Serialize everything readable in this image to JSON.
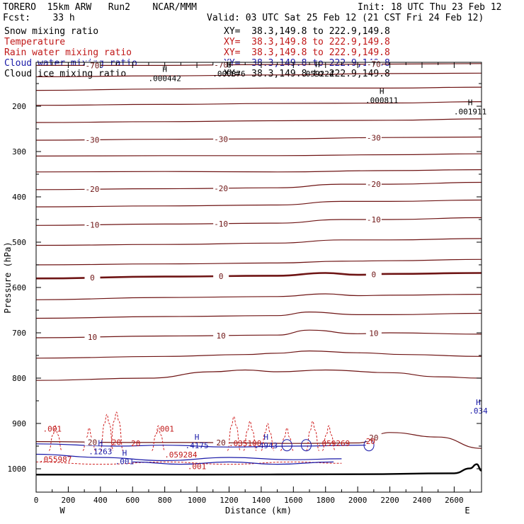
{
  "header": {
    "model": "TORERO  15km ARW   Run2    NCAR/MMM",
    "init": "Init: 18 UTC Thu 23 Feb 12",
    "fcst": "Fcst:    33 h",
    "valid": "Valid: 03 UTC Sat 25 Feb 12 (21 CST Fri 24 Feb 12)"
  },
  "fields": [
    {
      "name": "Snow mixing ratio",
      "xy": "XY=  38.3,149.8 to 222.9,149.8",
      "color": "#000000"
    },
    {
      "name": "Temperature",
      "xy": "XY=  38.3,149.8 to 222.9,149.8",
      "color": "#c01818"
    },
    {
      "name": "Rain water mixing ratio",
      "xy": "XY=  38.3,149.8 to 222.9,149.8",
      "color": "#c01818"
    },
    {
      "name": "Cloud water mixing ratio",
      "xy": "XY=  38.3,149.8 to 222.9,149.8",
      "color": "#1a1aa8"
    },
    {
      "name": "Cloud ice mixing ratio",
      "xy": "XY=  38.3,149.8 to 222.9,149.8",
      "color": "#000000"
    }
  ],
  "chart_data": {
    "type": "cross-section contour",
    "xlabel": "Distance (km)",
    "ylabel": "Pressure (hPa)",
    "xlim": [
      0,
      2770
    ],
    "ylim": [
      1030,
      100
    ],
    "x_ticks": [
      0,
      200,
      400,
      600,
      800,
      1000,
      1200,
      1400,
      1600,
      1800,
      2000,
      2200,
      2400,
      2600
    ],
    "y_ticks": [
      200,
      300,
      400,
      500,
      600,
      700,
      800,
      900,
      1000
    ],
    "endpoints": {
      "left": "W",
      "right": "E"
    },
    "temperature_contours": [
      {
        "label": "-70",
        "points": [
          [
            0,
            110
          ],
          [
            700,
            110
          ],
          [
            1500,
            108
          ],
          [
            2200,
            107
          ],
          [
            2770,
            106
          ]
        ]
      },
      {
        "label": "",
        "points": [
          [
            0,
            135
          ],
          [
            800,
            133
          ],
          [
            1500,
            131
          ],
          [
            2200,
            128
          ],
          [
            2770,
            127
          ]
        ]
      },
      {
        "label": "",
        "points": [
          [
            0,
            165
          ],
          [
            800,
            162
          ],
          [
            1500,
            160
          ],
          [
            2200,
            160
          ],
          [
            2770,
            158
          ]
        ]
      },
      {
        "label": "",
        "points": [
          [
            0,
            198
          ],
          [
            800,
            196
          ],
          [
            1500,
            194
          ],
          [
            2200,
            193
          ],
          [
            2770,
            190
          ]
        ]
      },
      {
        "label": "",
        "points": [
          [
            0,
            236
          ],
          [
            800,
            234
          ],
          [
            1500,
            232
          ],
          [
            2200,
            231
          ],
          [
            2770,
            228
          ]
        ]
      },
      {
        "label": "-30",
        "points": [
          [
            0,
            275
          ],
          [
            800,
            273
          ],
          [
            1500,
            272
          ],
          [
            2200,
            269
          ],
          [
            2770,
            268
          ]
        ]
      },
      {
        "label": "",
        "points": [
          [
            0,
            310
          ],
          [
            800,
            309
          ],
          [
            1500,
            309
          ],
          [
            2200,
            307
          ],
          [
            2770,
            305
          ]
        ]
      },
      {
        "label": "",
        "points": [
          [
            0,
            345
          ],
          [
            800,
            344
          ],
          [
            1500,
            345
          ],
          [
            2200,
            342
          ],
          [
            2770,
            340
          ]
        ]
      },
      {
        "label": "-20",
        "points": [
          [
            0,
            384
          ],
          [
            800,
            382
          ],
          [
            1500,
            380
          ],
          [
            1900,
            372
          ],
          [
            2200,
            372
          ],
          [
            2770,
            368
          ]
        ]
      },
      {
        "label": "",
        "points": [
          [
            0,
            422
          ],
          [
            800,
            420
          ],
          [
            1500,
            418
          ],
          [
            1900,
            410
          ],
          [
            2200,
            410
          ],
          [
            2770,
            407
          ]
        ]
      },
      {
        "label": "-10",
        "points": [
          [
            0,
            463
          ],
          [
            800,
            460
          ],
          [
            1500,
            458
          ],
          [
            1900,
            450
          ],
          [
            2200,
            450
          ],
          [
            2770,
            446
          ]
        ]
      },
      {
        "label": "",
        "points": [
          [
            0,
            507
          ],
          [
            800,
            505
          ],
          [
            1500,
            502
          ],
          [
            1900,
            495
          ],
          [
            2200,
            495
          ],
          [
            2770,
            492
          ]
        ]
      },
      {
        "label": "",
        "points": [
          [
            0,
            550
          ],
          [
            800,
            548
          ],
          [
            1500,
            546
          ],
          [
            1900,
            542
          ],
          [
            2200,
            541
          ],
          [
            2770,
            538
          ]
        ]
      },
      {
        "label": "0",
        "points": [
          [
            0,
            580
          ],
          [
            800,
            576
          ],
          [
            1500,
            574
          ],
          [
            1800,
            568
          ],
          [
            2000,
            572
          ],
          [
            2200,
            570
          ],
          [
            2770,
            568
          ]
        ]
      },
      {
        "label": "",
        "points": [
          [
            0,
            627
          ],
          [
            800,
            622
          ],
          [
            1500,
            620
          ],
          [
            1800,
            614
          ],
          [
            2000,
            618
          ],
          [
            2200,
            617
          ],
          [
            2770,
            615
          ]
        ]
      },
      {
        "label": "",
        "points": [
          [
            0,
            668
          ],
          [
            800,
            664
          ],
          [
            1500,
            662
          ],
          [
            1700,
            654
          ],
          [
            2000,
            660
          ],
          [
            2200,
            660
          ],
          [
            2770,
            657
          ]
        ]
      },
      {
        "label": "10",
        "points": [
          [
            0,
            711
          ],
          [
            800,
            707
          ],
          [
            1500,
            705
          ],
          [
            1700,
            694
          ],
          [
            2000,
            702
          ],
          [
            2200,
            700
          ],
          [
            2770,
            703
          ]
        ]
      },
      {
        "label": "",
        "points": [
          [
            0,
            756
          ],
          [
            800,
            752
          ],
          [
            1300,
            748
          ],
          [
            1500,
            745
          ],
          [
            1700,
            740
          ],
          [
            2000,
            744
          ],
          [
            2300,
            748
          ],
          [
            2770,
            752
          ]
        ]
      },
      {
        "label": "",
        "points": [
          [
            0,
            805
          ],
          [
            700,
            800
          ],
          [
            1100,
            786
          ],
          [
            1300,
            782
          ],
          [
            1500,
            786
          ],
          [
            1800,
            782
          ],
          [
            2200,
            788
          ],
          [
            2500,
            797
          ],
          [
            2770,
            800
          ]
        ]
      },
      {
        "label": "20",
        "points": [
          [
            0,
            940
          ],
          [
            600,
            942
          ],
          [
            1000,
            942
          ],
          [
            1300,
            943
          ],
          [
            1600,
            944
          ],
          [
            2000,
            943
          ],
          [
            2200,
            920
          ],
          [
            2500,
            930
          ],
          [
            2770,
            955
          ]
        ]
      }
    ],
    "snow_maxima": [
      {
        "symbol": "H",
        "value": ".000442",
        "x": 800,
        "p": 140
      },
      {
        "symbol": "H",
        "value": ".000876",
        "x": 1200,
        "p": 130
      },
      {
        "symbol": "H",
        "value": ".059224",
        "x": 1750,
        "p": 130
      },
      {
        "symbol": "H",
        "value": ".000811",
        "x": 2150,
        "p": 188
      },
      {
        "symbol": "H",
        "value": ".001911",
        "x": 2700,
        "p": 213
      }
    ],
    "rain_labels": [
      ".001",
      ".001",
      ".059284",
      ".055987",
      ".001",
      ".035108",
      ".059269",
      "20",
      "20",
      "20"
    ],
    "cloud_water_labels": [
      ".1263",
      ".001",
      ".4175",
      ".4943",
      ".034"
    ],
    "cloud_water_maxima_symbol": "H",
    "temperature_label_values": [
      "-70",
      "-30",
      "-20",
      "-10",
      "0",
      "10",
      "20"
    ]
  }
}
